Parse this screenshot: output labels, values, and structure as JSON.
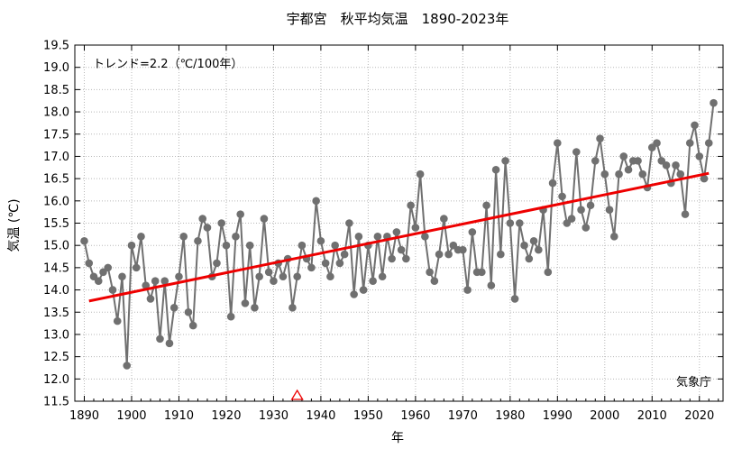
{
  "chart_data": {
    "type": "line",
    "title": "宇都宮　秋平均気温　1890-2023年",
    "xlabel": "年",
    "ylabel": "気温 (℃)",
    "xlim": [
      1888,
      2025
    ],
    "ylim": [
      11.5,
      19.5
    ],
    "x_ticks": [
      1890,
      1900,
      1910,
      1920,
      1930,
      1940,
      1950,
      1960,
      1970,
      1980,
      1990,
      2000,
      2010,
      2020
    ],
    "y_ticks": [
      11.5,
      12.0,
      12.5,
      13.0,
      13.5,
      14.0,
      14.5,
      15.0,
      15.5,
      16.0,
      16.5,
      17.0,
      17.5,
      18.0,
      18.5,
      19.0,
      19.5
    ],
    "grid": true,
    "trend_label": "トレンド=2.2（℃/100年）",
    "source_label": "気象庁",
    "marker_year": 1935,
    "series": [
      {
        "color": "#707070",
        "points": [
          [
            1890,
            15.1
          ],
          [
            1891,
            14.6
          ],
          [
            1892,
            14.3
          ],
          [
            1893,
            14.2
          ],
          [
            1894,
            14.4
          ],
          [
            1895,
            14.5
          ],
          [
            1896,
            14.0
          ],
          [
            1897,
            13.3
          ],
          [
            1898,
            14.3
          ],
          [
            1899,
            12.3
          ],
          [
            1900,
            15.0
          ],
          [
            1901,
            14.5
          ],
          [
            1902,
            15.2
          ],
          [
            1903,
            14.1
          ],
          [
            1904,
            13.8
          ],
          [
            1905,
            14.2
          ],
          [
            1906,
            12.9
          ],
          [
            1907,
            14.2
          ],
          [
            1908,
            12.8
          ],
          [
            1909,
            13.6
          ],
          [
            1910,
            14.3
          ],
          [
            1911,
            15.2
          ],
          [
            1912,
            13.5
          ],
          [
            1913,
            13.2
          ],
          [
            1914,
            15.1
          ],
          [
            1915,
            15.6
          ],
          [
            1916,
            15.4
          ],
          [
            1917,
            14.3
          ],
          [
            1918,
            14.6
          ],
          [
            1919,
            15.5
          ],
          [
            1920,
            15.0
          ],
          [
            1921,
            13.4
          ],
          [
            1922,
            15.2
          ],
          [
            1923,
            15.7
          ],
          [
            1924,
            13.7
          ],
          [
            1925,
            15.0
          ],
          [
            1926,
            13.6
          ],
          [
            1927,
            14.3
          ],
          [
            1928,
            15.6
          ],
          [
            1929,
            14.4
          ],
          [
            1930,
            14.2
          ],
          [
            1931,
            14.6
          ],
          [
            1932,
            14.3
          ],
          [
            1933,
            14.7
          ],
          [
            1934,
            13.6
          ],
          [
            1935,
            14.3
          ],
          [
            1936,
            15.0
          ],
          [
            1937,
            14.7
          ],
          [
            1938,
            14.5
          ],
          [
            1939,
            16.0
          ],
          [
            1940,
            15.1
          ],
          [
            1941,
            14.6
          ],
          [
            1942,
            14.3
          ],
          [
            1943,
            15.0
          ],
          [
            1944,
            14.6
          ],
          [
            1945,
            14.8
          ],
          [
            1946,
            15.5
          ],
          [
            1947,
            13.9
          ],
          [
            1948,
            15.2
          ],
          [
            1949,
            14.0
          ],
          [
            1950,
            15.0
          ],
          [
            1951,
            14.2
          ],
          [
            1952,
            15.2
          ],
          [
            1953,
            14.3
          ],
          [
            1954,
            15.2
          ],
          [
            1955,
            14.7
          ],
          [
            1956,
            15.3
          ],
          [
            1957,
            14.9
          ],
          [
            1958,
            14.7
          ],
          [
            1959,
            15.9
          ],
          [
            1960,
            15.4
          ],
          [
            1961,
            16.6
          ],
          [
            1962,
            15.2
          ],
          [
            1963,
            14.4
          ],
          [
            1964,
            14.2
          ],
          [
            1965,
            14.8
          ],
          [
            1966,
            15.6
          ],
          [
            1967,
            14.8
          ],
          [
            1968,
            15.0
          ],
          [
            1969,
            14.9
          ],
          [
            1970,
            14.9
          ],
          [
            1971,
            14.0
          ],
          [
            1972,
            15.3
          ],
          [
            1973,
            14.4
          ],
          [
            1974,
            14.4
          ],
          [
            1975,
            15.9
          ],
          [
            1976,
            14.1
          ],
          [
            1977,
            16.7
          ],
          [
            1978,
            14.8
          ],
          [
            1979,
            16.9
          ],
          [
            1980,
            15.5
          ],
          [
            1981,
            13.8
          ],
          [
            1982,
            15.5
          ],
          [
            1983,
            15.0
          ],
          [
            1984,
            14.7
          ],
          [
            1985,
            15.1
          ],
          [
            1986,
            14.9
          ],
          [
            1987,
            15.8
          ],
          [
            1988,
            14.4
          ],
          [
            1989,
            16.4
          ],
          [
            1990,
            17.3
          ],
          [
            1991,
            16.1
          ],
          [
            1992,
            15.5
          ],
          [
            1993,
            15.6
          ],
          [
            1994,
            17.1
          ],
          [
            1995,
            15.8
          ],
          [
            1996,
            15.4
          ],
          [
            1997,
            15.9
          ],
          [
            1998,
            16.9
          ],
          [
            1999,
            17.4
          ],
          [
            2000,
            16.6
          ],
          [
            2001,
            15.8
          ],
          [
            2002,
            15.2
          ],
          [
            2003,
            16.6
          ],
          [
            2004,
            17.0
          ],
          [
            2005,
            16.7
          ],
          [
            2006,
            16.9
          ],
          [
            2007,
            16.9
          ],
          [
            2008,
            16.6
          ],
          [
            2009,
            16.3
          ],
          [
            2010,
            17.2
          ],
          [
            2011,
            17.3
          ],
          [
            2012,
            16.9
          ],
          [
            2013,
            16.8
          ],
          [
            2014,
            16.4
          ],
          [
            2015,
            16.8
          ],
          [
            2016,
            16.6
          ],
          [
            2017,
            15.7
          ],
          [
            2018,
            17.3
          ],
          [
            2019,
            17.7
          ],
          [
            2020,
            17.0
          ],
          [
            2021,
            16.5
          ],
          [
            2022,
            17.3
          ],
          [
            2023,
            18.2
          ]
        ]
      }
    ],
    "trend_line": {
      "color": "#ee0000",
      "x": [
        1891,
        2022
      ],
      "y": [
        13.75,
        16.62
      ]
    }
  }
}
